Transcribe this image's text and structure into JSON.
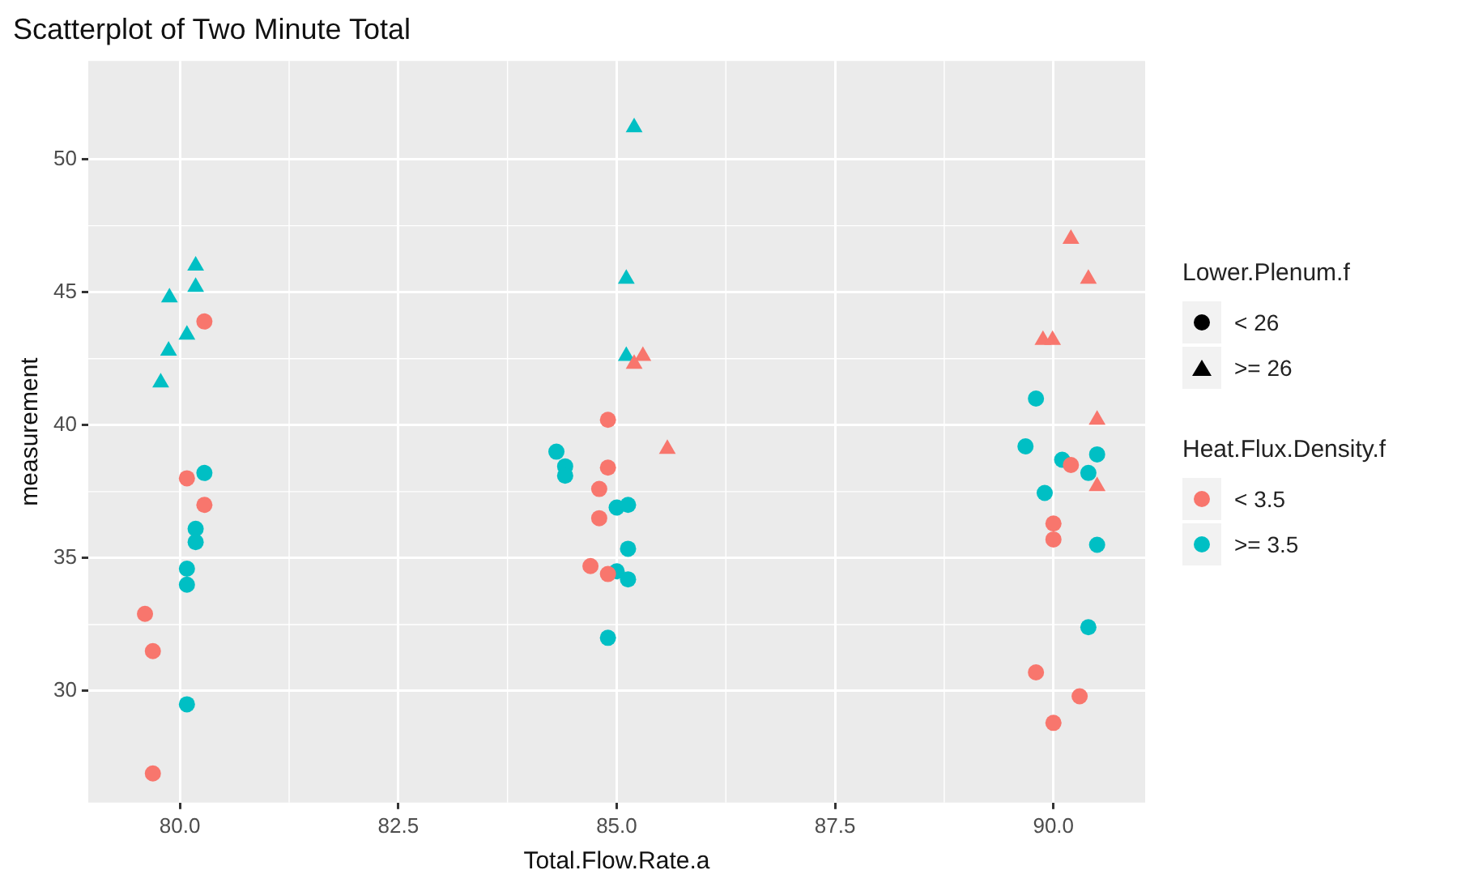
{
  "chart_data": {
    "type": "scatter",
    "title": "Scatterplot of Two Minute Total",
    "xlabel": "Total.Flow.Rate.a",
    "ylabel": "measurement",
    "xlim": [
      78.95,
      91.05
    ],
    "xticks": [
      {
        "value": 80,
        "label": "80.0"
      },
      {
        "value": 82.5,
        "label": "82.5"
      },
      {
        "value": 85,
        "label": "85.0"
      },
      {
        "value": 87.5,
        "label": "87.5"
      },
      {
        "value": 90,
        "label": "90.0"
      }
    ],
    "ylim": [
      25.8,
      53.7
    ],
    "yticks": [
      30,
      35,
      40,
      45,
      50
    ],
    "grid": true,
    "annotations": [
      "Lower.Plenum.f",
      "< 26",
      ">= 26",
      "Heat.Flux.Density.f",
      "< 3.5",
      ">= 3.5"
    ],
    "series": [
      {
        "color": "#f8766d",
        "marker": "circle",
        "x": [
          80.28,
          80.08,
          80.28,
          79.6,
          79.69,
          79.69,
          84.9,
          84.9,
          84.8,
          84.8,
          84.7,
          84.9,
          90.2,
          90.0,
          90.0,
          89.8,
          90.3,
          90.0
        ],
        "values": [
          43.9,
          38.0,
          37.0,
          32.9,
          31.5,
          26.9,
          40.2,
          38.4,
          37.6,
          36.5,
          34.7,
          34.4,
          38.5,
          36.3,
          35.7,
          30.7,
          29.8,
          28.8
        ]
      },
      {
        "color": "#f8766d",
        "marker": "triangle",
        "x": [
          85.3,
          85.2,
          85.58,
          90.2,
          90.4,
          89.88,
          89.99,
          90.5,
          90.5
        ],
        "values": [
          42.6,
          42.3,
          39.1,
          47.0,
          45.5,
          43.2,
          43.2,
          40.2,
          37.7
        ]
      },
      {
        "color": "#00bfc4",
        "marker": "circle",
        "x": [
          80.28,
          80.18,
          80.18,
          80.08,
          80.08,
          80.08,
          84.31,
          84.41,
          84.41,
          85.0,
          85.13,
          85.13,
          85.0,
          85.13,
          84.9,
          89.8,
          89.68,
          90.1,
          90.5,
          90.4,
          89.9,
          90.5,
          90.4
        ],
        "values": [
          38.2,
          36.1,
          35.6,
          34.6,
          34.0,
          29.5,
          39.0,
          38.45,
          38.1,
          36.9,
          37.0,
          35.35,
          34.5,
          34.2,
          32.0,
          41.0,
          39.2,
          38.7,
          38.9,
          38.2,
          37.45,
          35.5,
          32.4
        ]
      },
      {
        "color": "#00bfc4",
        "marker": "triangle",
        "x": [
          80.18,
          80.18,
          79.88,
          80.08,
          79.87,
          79.78,
          85.2,
          85.11,
          85.11
        ],
        "values": [
          46.0,
          45.2,
          44.8,
          43.4,
          42.8,
          41.6,
          51.2,
          45.5,
          42.6
        ]
      }
    ]
  }
}
